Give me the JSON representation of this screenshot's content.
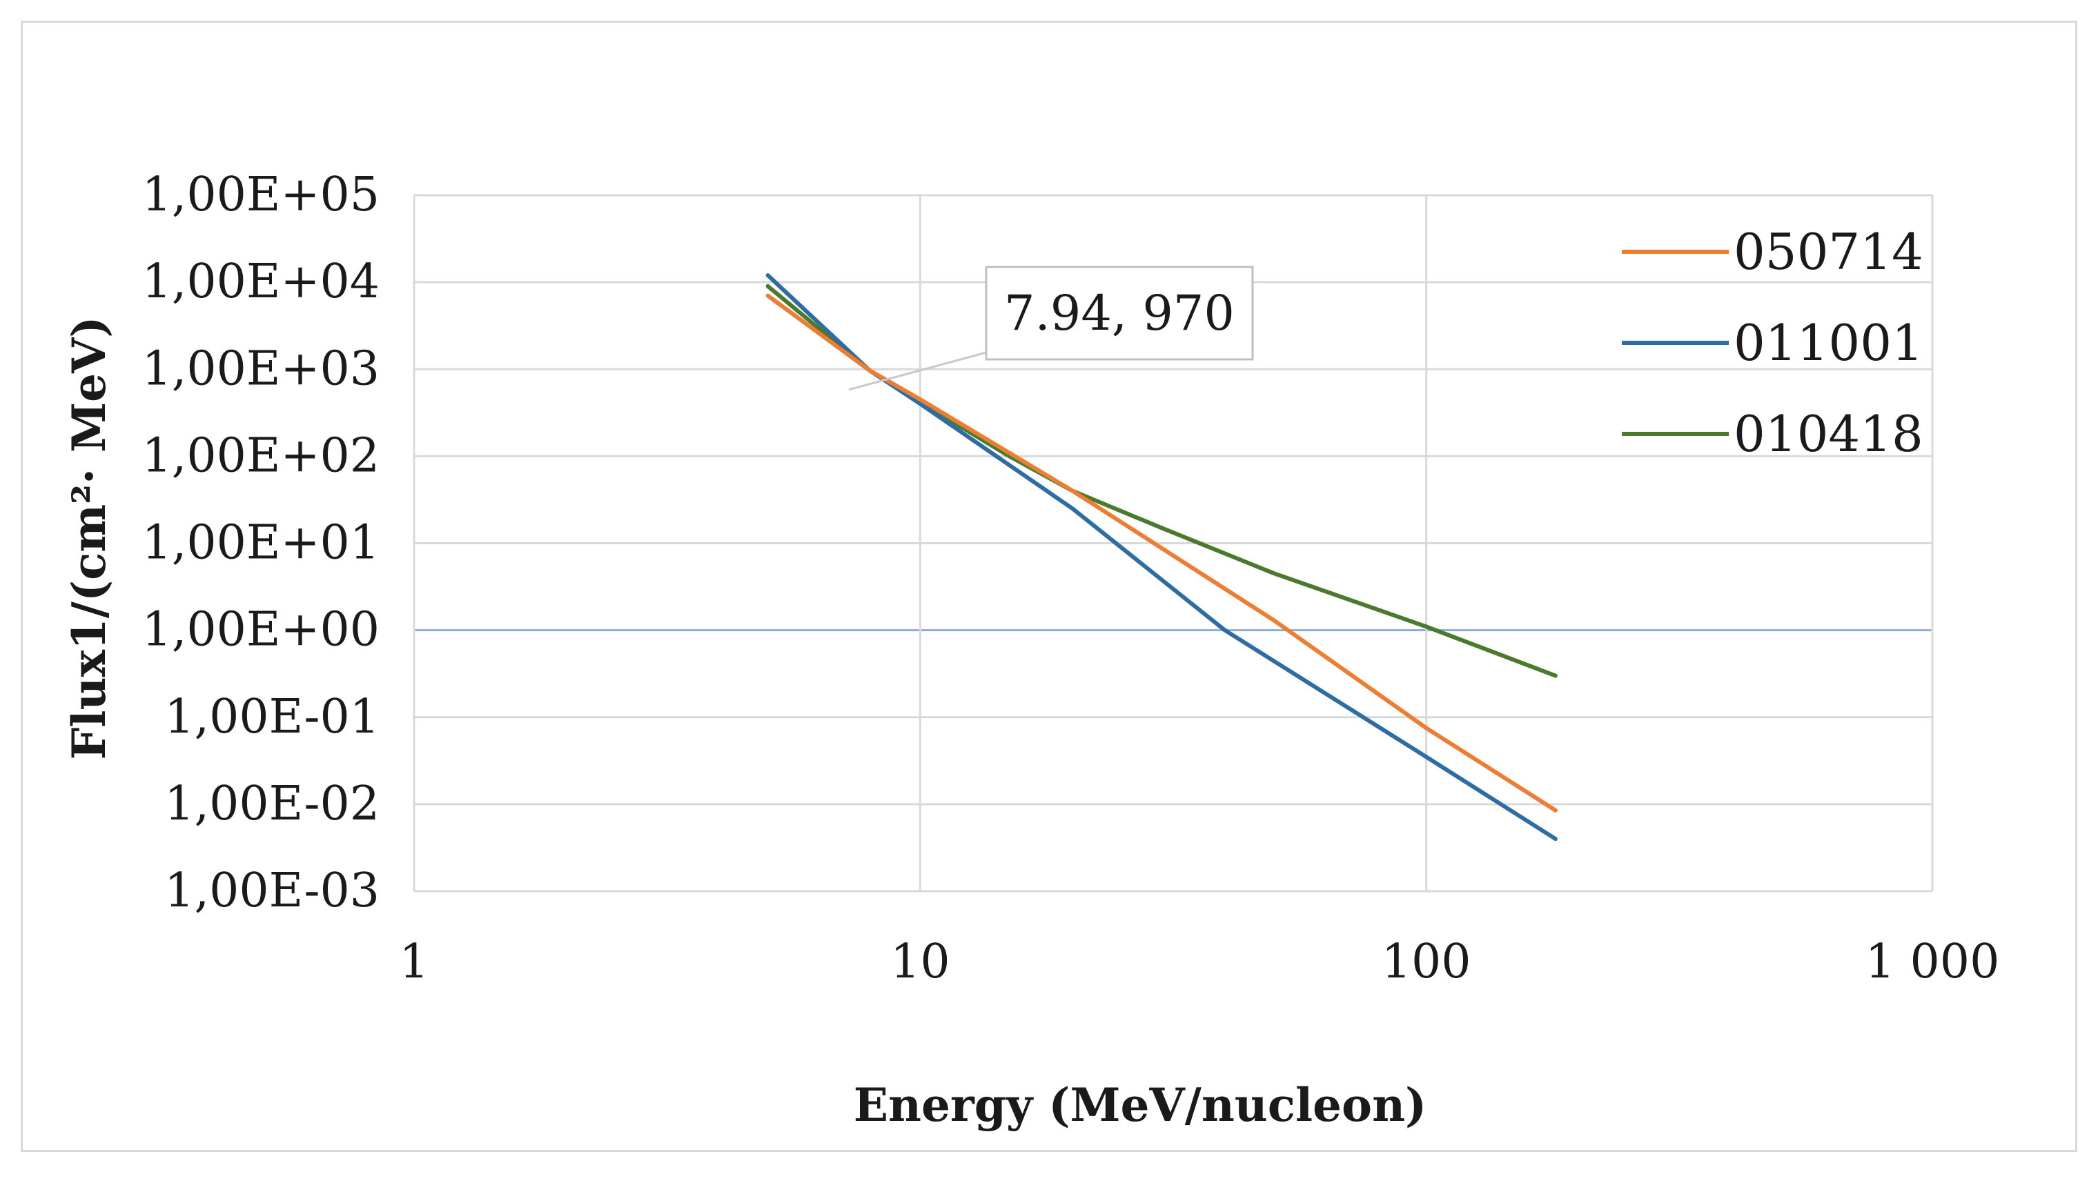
{
  "chart_data": {
    "type": "line",
    "xscale": "log",
    "yscale": "log",
    "xlabel": "Energy (MeV/nucleon)",
    "ylabel": "Flux1/(cm²· MeV)",
    "xlim": [
      1,
      1000
    ],
    "ylim": [
      0.001,
      100000
    ],
    "x_ticks": [
      {
        "value": 1,
        "label": "1"
      },
      {
        "value": 10,
        "label": "10"
      },
      {
        "value": 100,
        "label": "100"
      },
      {
        "value": 1000,
        "label": "1 000"
      }
    ],
    "y_ticks": [
      {
        "value": 100000,
        "label": "1,00E+05"
      },
      {
        "value": 10000,
        "label": "1,00E+04"
      },
      {
        "value": 1000,
        "label": "1,00E+03"
      },
      {
        "value": 100,
        "label": "1,00E+02"
      },
      {
        "value": 10,
        "label": "1,00E+01"
      },
      {
        "value": 1,
        "label": "1,00E+00"
      },
      {
        "value": 0.1,
        "label": "1,00E-01"
      },
      {
        "value": 0.01,
        "label": "1,00E-02"
      },
      {
        "value": 0.001,
        "label": "1,00E-03"
      }
    ],
    "series": [
      {
        "name": "050714",
        "color": "#ed7d31",
        "x": [
          5,
          7.94,
          10,
          20,
          50,
          100,
          180
        ],
        "y": [
          7000,
          970,
          450,
          40,
          1.3,
          0.075,
          0.0085
        ]
      },
      {
        "name": "011001",
        "color": "#2e6da4",
        "x": [
          5,
          7.94,
          10,
          20,
          40,
          100,
          180
        ],
        "y": [
          12000,
          970,
          400,
          25,
          1,
          0.035,
          0.004
        ]
      },
      {
        "name": "010418",
        "color": "#4a7a2e",
        "x": [
          5,
          7.94,
          10,
          15,
          20,
          30,
          50,
          100,
          180
        ],
        "y": [
          9000,
          970,
          420,
          100,
          40,
          15,
          4.5,
          1.1,
          0.3
        ]
      }
    ],
    "annotation": {
      "x": 7.94,
      "y": 970,
      "label": "7.94, 970"
    },
    "legend_position": "top-right",
    "grid": true
  }
}
